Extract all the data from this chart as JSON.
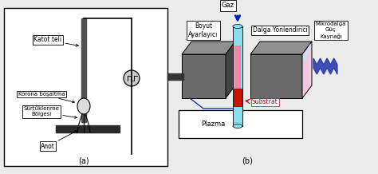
{
  "bg_color": "#ebebeb",
  "title_a": "(a)",
  "title_b": "(b)",
  "labels": {
    "katot_teli": "Katot teli",
    "korona": "Korona boşaltma",
    "surtuklenme": "Sürtüklenme\nBölgesi",
    "anot": "Anot",
    "boyut": "Boyut\nAyarlayıcı",
    "gaz": "Gaz",
    "dalga": "Dalga Yönlendirici",
    "mikro": "Mikrodalga\nGüç\nKaynağı",
    "plazma": "Plazma",
    "substrat": "Substrat"
  },
  "colors": {
    "dark_gray": "#505050",
    "mid_gray": "#808080",
    "light_gray": "#aaaaaa",
    "dark_bar": "#2a2a2a",
    "darker_block": "#555555",
    "block_front": "#6a6a6a",
    "block_top": "#909090",
    "block_side": "#444444",
    "cyan_tube": "#88ddee",
    "pink_tube": "#ee88aa",
    "red_sample": "#cc1100",
    "blue_arrow": "#0022bb",
    "wave_blue": "#2233aa",
    "pink_face": "#f0c8e0",
    "cyan_face": "#b8eef8",
    "circuit_gray": "#aaaaaa",
    "text_red": "#cc0000",
    "white": "#ffffff",
    "black": "#000000"
  }
}
